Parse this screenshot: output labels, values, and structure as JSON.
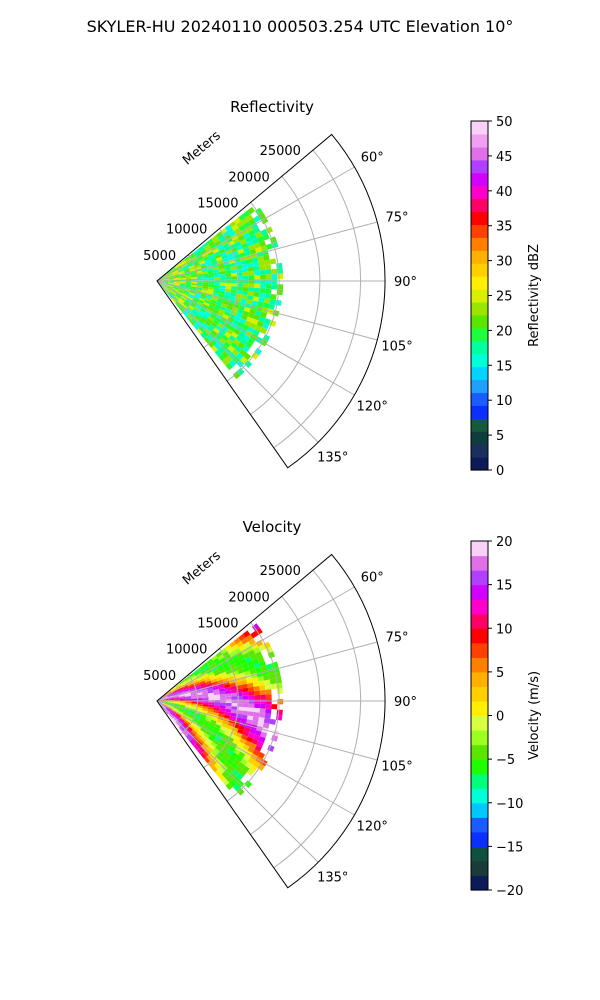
{
  "figure": {
    "title": "SKYLER-HU  20240110  000503.254 UTC Elevation 10°"
  },
  "chart_data": [
    {
      "type": "heatmap",
      "projection": "polar-sector",
      "title": "Reflectivity",
      "range_axis_label": "Meters",
      "range_ticks": [
        5000,
        10000,
        15000,
        20000,
        25000
      ],
      "range_tick_labels": [
        "5000",
        "10000",
        "15000",
        "20000",
        "25000"
      ],
      "range_max": 28000,
      "azimuth_ticks": [
        60,
        75,
        90,
        105,
        120,
        135
      ],
      "azimuth_tick_labels": [
        "60°",
        "75°",
        "90°",
        "105°",
        "120°",
        "135°"
      ],
      "azimuth_range": [
        50,
        145
      ],
      "grid": true,
      "data_extent_m": 15500,
      "dominant_field_range": [
        15,
        25
      ],
      "colorbar": {
        "label": "Reflectivity dBZ",
        "min": 0,
        "max": 50,
        "ticks": [
          0,
          5,
          10,
          15,
          20,
          25,
          30,
          35,
          40,
          45,
          50
        ],
        "tick_labels": [
          "0",
          "5",
          "10",
          "15",
          "20",
          "25",
          "30",
          "35",
          "40",
          "45",
          "50"
        ],
        "colors": [
          "#0d1a5a",
          "#1b2f5e",
          "#0f3d3d",
          "#155a3a",
          "#0a2fff",
          "#1a5cff",
          "#1ea0ff",
          "#00d4ff",
          "#00ffd9",
          "#00ffa0",
          "#1eff3c",
          "#5ae600",
          "#9be600",
          "#d8f000",
          "#ffef00",
          "#ffd000",
          "#ffb000",
          "#ff8000",
          "#ff4000",
          "#ff0000",
          "#ff0066",
          "#ff00cc",
          "#d200ff",
          "#b040ff",
          "#e070e8",
          "#f0a0f0",
          "#f8d0f8"
        ]
      }
    },
    {
      "type": "heatmap",
      "projection": "polar-sector",
      "title": "Velocity",
      "range_axis_label": "Meters",
      "range_ticks": [
        5000,
        10000,
        15000,
        20000,
        25000
      ],
      "range_tick_labels": [
        "5000",
        "10000",
        "15000",
        "20000",
        "25000"
      ],
      "range_max": 28000,
      "azimuth_ticks": [
        60,
        75,
        90,
        105,
        120,
        135
      ],
      "azimuth_tick_labels": [
        "60°",
        "75°",
        "90°",
        "105°",
        "120°",
        "135°"
      ],
      "azimuth_range": [
        50,
        145
      ],
      "grid": true,
      "data_extent_m": 15500,
      "colorbar": {
        "label": "Velocity (m/s)",
        "min": -20,
        "max": 20,
        "ticks": [
          -20,
          -15,
          -10,
          -5,
          0,
          5,
          10,
          15,
          20
        ],
        "tick_labels": [
          "−20",
          "−15",
          "−10",
          "−5",
          "0",
          "5",
          "10",
          "15",
          "20"
        ],
        "colors": [
          "#0d1a5a",
          "#1b3a3a",
          "#0f5040",
          "#0a2fff",
          "#1a5cff",
          "#00c8ff",
          "#00ffd9",
          "#00ff7a",
          "#1eff00",
          "#5ae600",
          "#9bff20",
          "#d8ff40",
          "#ffef00",
          "#ffd000",
          "#ffb000",
          "#ff8000",
          "#ff4000",
          "#ff0000",
          "#ff0066",
          "#ff00cc",
          "#d200ff",
          "#b040ff",
          "#e070e8",
          "#f8d0f8"
        ]
      }
    }
  ]
}
